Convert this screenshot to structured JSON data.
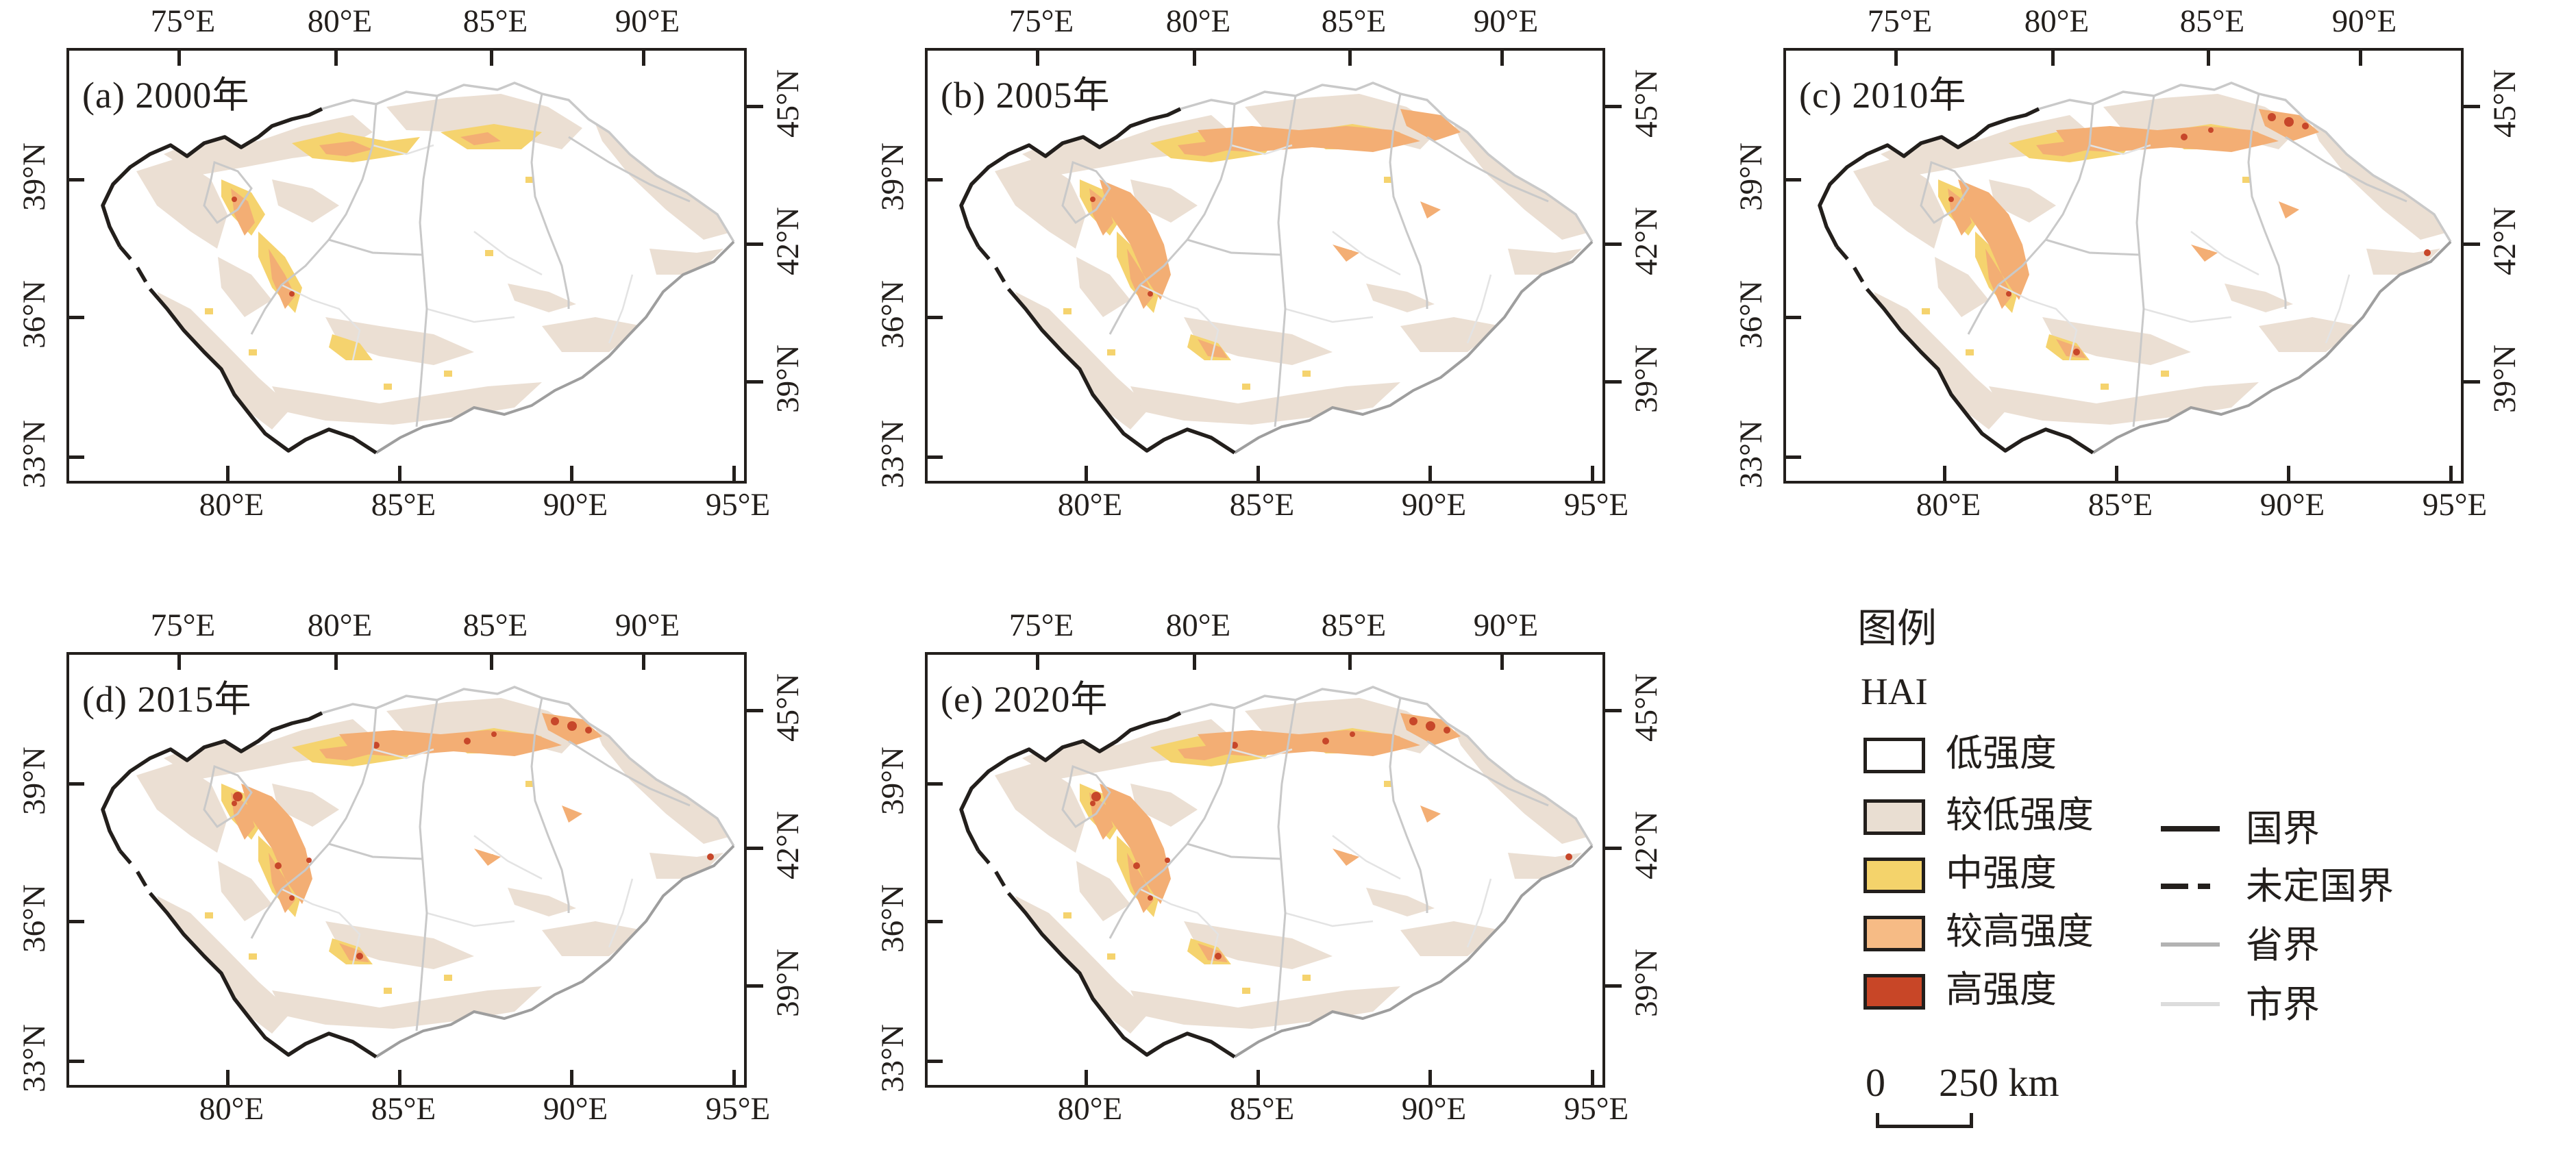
{
  "figure": {
    "background": "#ffffff"
  },
  "axes": {
    "top": [
      "75°E",
      "80°E",
      "85°E",
      "90°E"
    ],
    "bottom": [
      "80°E",
      "85°E",
      "90°E",
      "95°E"
    ],
    "left": [
      "39°N",
      "36°N",
      "33°N"
    ],
    "right": [
      "45°N",
      "42°N",
      "39°N"
    ]
  },
  "panels": [
    {
      "key": "a",
      "title": "(a) 2000年",
      "year": "2000"
    },
    {
      "key": "b",
      "title": "(b) 2005年",
      "year": "2005"
    },
    {
      "key": "c",
      "title": "(c) 2010年",
      "year": "2010"
    },
    {
      "key": "d",
      "title": "(d) 2015年",
      "year": "2015"
    },
    {
      "key": "e",
      "title": "(e) 2020年",
      "year": "2020"
    }
  ],
  "legend": {
    "title": "图例",
    "layer_name": "HAI",
    "classes": [
      {
        "label": "低强度",
        "color": "#ffffff"
      },
      {
        "label": "较低强度",
        "color": "#e9ded2"
      },
      {
        "label": "中强度",
        "color": "#f4d36b"
      },
      {
        "label": "较高强度",
        "color": "#f6bb85"
      },
      {
        "label": "高强度",
        "color": "#c84627"
      }
    ],
    "lines": [
      {
        "label": "国界",
        "color": "#231f1c",
        "dash": "solid",
        "thickness": 8
      },
      {
        "label": "未定国界",
        "color": "#231f1c",
        "dash": "dashed",
        "thickness": 8
      },
      {
        "label": "省界",
        "color": "#b3b3b3",
        "dash": "solid",
        "thickness": 6
      },
      {
        "label": "市界",
        "color": "#dcdcdc",
        "dash": "solid",
        "thickness": 6
      }
    ],
    "scalebar": {
      "zero": "0",
      "distance": "250 km"
    }
  },
  "map_colors": {
    "low": "#ffffff",
    "lower": "#ebdfd3",
    "medium": "#f5d36e",
    "higher": "#f3ae74",
    "high": "#c7472a",
    "national_boundary": "#231f1c",
    "province_boundary": "#c9c9c9",
    "city_boundary": "#e3e3e3",
    "basin_boundary_se": "#9e9e9e"
  }
}
